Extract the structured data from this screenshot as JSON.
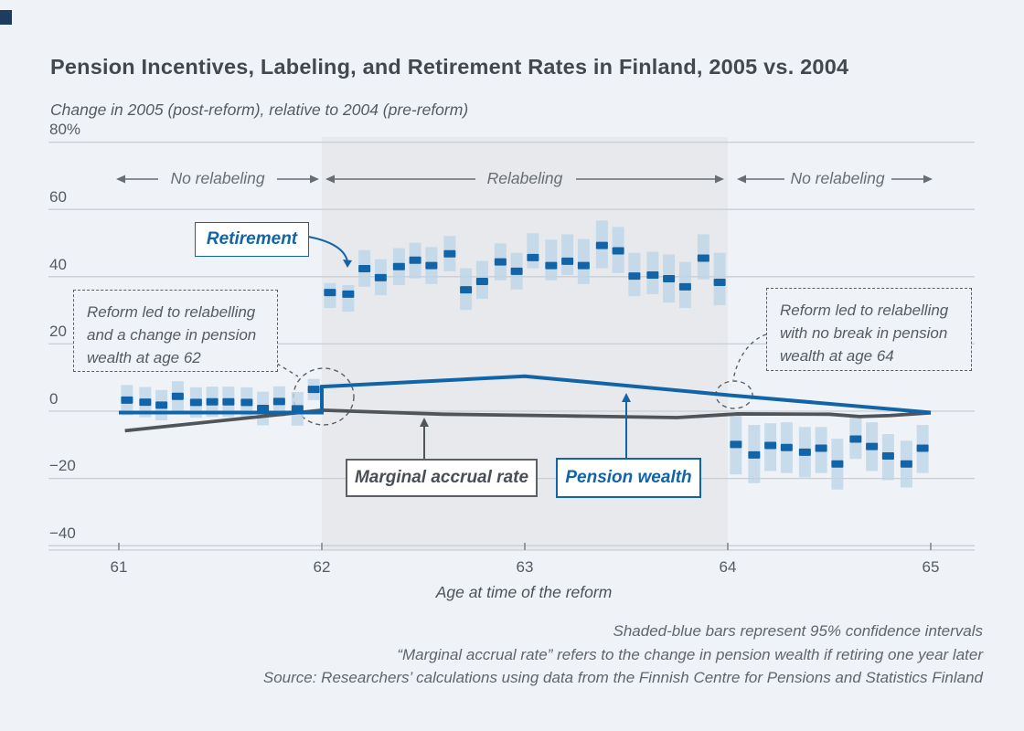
{
  "page": {
    "title": "Pension Incentives, Labeling, and Retirement Rates in Finland, 2005 vs. 2004",
    "subtitle": "Change in 2005 (post-reform), relative to 2004 (pre-reform)"
  },
  "axis": {
    "y_ticks": [
      "80%",
      "60",
      "40",
      "20",
      "0",
      "−20",
      "−40"
    ],
    "y_values": [
      80,
      60,
      40,
      20,
      0,
      -20,
      -40
    ],
    "x_ticks": [
      "61",
      "62",
      "63",
      "64",
      "65"
    ],
    "x_values": [
      61,
      62,
      63,
      64,
      65
    ],
    "x_title": "Age at time of the reform"
  },
  "annotations": {
    "region_left": "No relabeling",
    "region_middle": "Relabeling",
    "region_right": "No relabeling",
    "label_retirement": "Retirement",
    "label_marginal": "Marginal accrual rate",
    "label_pension": "Pension wealth",
    "callout_left": {
      "line1": "Reform led to relabelling",
      "line2": "and a change in pension",
      "line3": "wealth at age 62"
    },
    "callout_right": {
      "line1": "Reform led to relabelling",
      "line2": "with no break in pension",
      "line3": "wealth at age 64"
    }
  },
  "footnotes": [
    "Shaded-blue bars represent 95% confidence intervals",
    "“Marginal accrual rate” refers to the change in pension wealth if retiring one year later",
    "Source: Researchers’ calculations using data from the Finnish Centre for Pensions and Statistics Finland"
  ],
  "colors": {
    "background": "#eff3f8",
    "accent_blue": "#1164a8",
    "dark_gray": "#50555a",
    "ci_bar": "#bdd4e7",
    "shading": "#e8e9ec",
    "gridline": "#c9ced4",
    "tick": "#7d8389",
    "annotation_gray": "#676d73",
    "dashed_gray": "#5a6065",
    "corner_mark": "#1d3c5e"
  },
  "chart_data": {
    "type": "scatter",
    "title": "Pension Incentives, Labeling, and Retirement Rates in Finland, 2005 vs. 2004",
    "ylabel": "Change in 2005 (post-reform), relative to 2004 (pre-reform)",
    "xlabel": "Age at time of the reform",
    "ylim": [
      -40,
      80
    ],
    "xlim": [
      60.65,
      65.2
    ],
    "grid": true,
    "shaded_region_x": [
      62,
      64
    ],
    "retirement": {
      "name": "Retirement",
      "x": [
        61.04,
        61.13,
        61.21,
        61.29,
        61.38,
        61.46,
        61.54,
        61.63,
        61.71,
        61.79,
        61.88,
        61.96,
        62.04,
        62.13,
        62.21,
        62.29,
        62.38,
        62.46,
        62.54,
        62.63,
        62.71,
        62.79,
        62.88,
        62.96,
        63.04,
        63.13,
        63.21,
        63.29,
        63.38,
        63.46,
        63.54,
        63.63,
        63.71,
        63.79,
        63.88,
        63.96,
        64.04,
        64.13,
        64.21,
        64.29,
        64.38,
        64.46,
        64.54,
        64.63,
        64.71,
        64.79,
        64.88,
        64.96
      ],
      "y": [
        3.3,
        2.7,
        1.8,
        4.4,
        2.6,
        2.8,
        2.8,
        2.6,
        0.8,
        2.9,
        0.7,
        6.5,
        35.3,
        34.8,
        42.4,
        39.7,
        43.0,
        44.9,
        43.3,
        46.8,
        36.1,
        38.6,
        44.4,
        41.6,
        45.7,
        43.3,
        44.6,
        43.3,
        49.3,
        47.7,
        40.2,
        40.5,
        39.4,
        37.0,
        45.5,
        38.3,
        -9.9,
        -13.0,
        -10.2,
        -10.8,
        -12.2,
        -11.0,
        -15.7,
        -8.3,
        -10.5,
        -13.3,
        -15.7,
        -11.0
      ],
      "ci_low": [
        -1.2,
        -1.8,
        -2.7,
        -0.1,
        -1.9,
        -1.7,
        -1.7,
        -1.9,
        -4.2,
        -1.6,
        -4.3,
        3.3,
        30.7,
        29.6,
        37.0,
        34.5,
        37.5,
        39.5,
        37.8,
        41.6,
        30.1,
        33.4,
        38.9,
        36.2,
        42.5,
        38.9,
        40.5,
        37.8,
        42.5,
        41.1,
        34.2,
        34.8,
        32.3,
        30.7,
        39.2,
        31.5,
        -18.8,
        -21.4,
        -17.8,
        -18.4,
        -19.7,
        -18.4,
        -23.3,
        -14.2,
        -17.8,
        -20.5,
        -22.7,
        -18.4
      ],
      "ci_high": [
        7.8,
        7.2,
        6.3,
        8.9,
        7.1,
        7.3,
        7.3,
        7.1,
        5.8,
        7.4,
        5.7,
        9.6,
        38.1,
        37.5,
        47.9,
        45.2,
        48.5,
        50.1,
        48.8,
        52.1,
        42.5,
        44.7,
        49.9,
        47.1,
        52.9,
        51.0,
        52.6,
        51.2,
        56.7,
        54.8,
        47.1,
        47.4,
        46.6,
        44.4,
        52.6,
        47.1,
        -0.5,
        -4.1,
        -3.6,
        -3.3,
        -4.7,
        -4.7,
        -8.2,
        -1.4,
        -3.3,
        -6.8,
        -8.8,
        -4.1
      ]
    },
    "pension_wealth": {
      "name": "Pension wealth",
      "x": [
        61,
        62,
        62,
        63,
        64,
        65
      ],
      "y": [
        -0.4,
        -0.4,
        7.3,
        10.4,
        4.8,
        -0.4
      ]
    },
    "marginal_accrual": {
      "name": "Marginal accrual rate",
      "x": [
        61.03,
        62,
        62.6,
        63.2,
        63.75,
        64.05,
        64.5,
        64.65,
        64.8,
        65
      ],
      "y": [
        -5.8,
        0.3,
        -0.9,
        -1.4,
        -1.9,
        -0.8,
        -0.9,
        -1.6,
        -1.3,
        -0.5
      ]
    }
  }
}
